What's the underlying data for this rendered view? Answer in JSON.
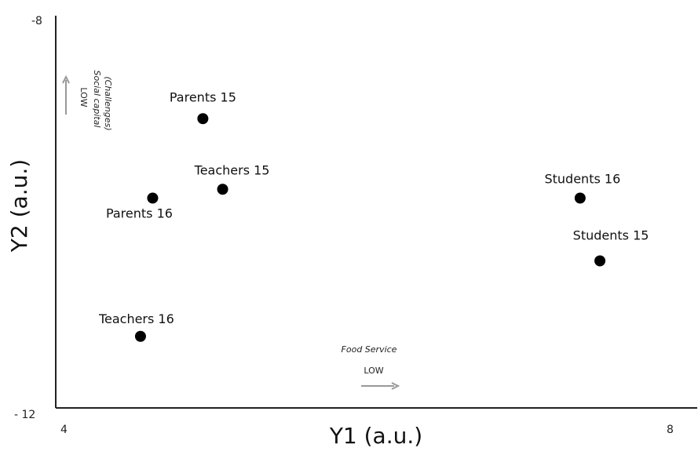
{
  "chart_data": {
    "type": "scatter",
    "xlabel": "Y1 (a.u.)",
    "ylabel": "Y2 (a.u.)",
    "xlim": [
      4,
      8
    ],
    "ylim": [
      -12,
      -8
    ],
    "y_inverted": true,
    "x_tick_labels": [
      "4",
      "8"
    ],
    "y_tick_labels": [
      "-8",
      "- 12"
    ],
    "grid": false,
    "points": [
      {
        "label": "Parents 15",
        "x": 4.9,
        "y": -9.05
      },
      {
        "label": "Teachers 15",
        "x": 5.03,
        "y": -9.77
      },
      {
        "label": "Parents 16",
        "x": 4.57,
        "y": -9.86
      },
      {
        "label": "Teachers 16",
        "x": 4.49,
        "y": -11.27
      },
      {
        "label": "Students 16",
        "x": 7.38,
        "y": -9.86
      },
      {
        "label": "Students 15",
        "x": 7.51,
        "y": -10.5
      }
    ],
    "annotations": {
      "y_arrow": {
        "level": "LOW",
        "line1": "Social capital",
        "line2": "(Challenges)"
      },
      "x_arrow": {
        "title": "Food Service",
        "level": "LOW"
      }
    }
  },
  "colors": {
    "point": "#000000",
    "axis": "#222222",
    "arrow": "#999999"
  }
}
